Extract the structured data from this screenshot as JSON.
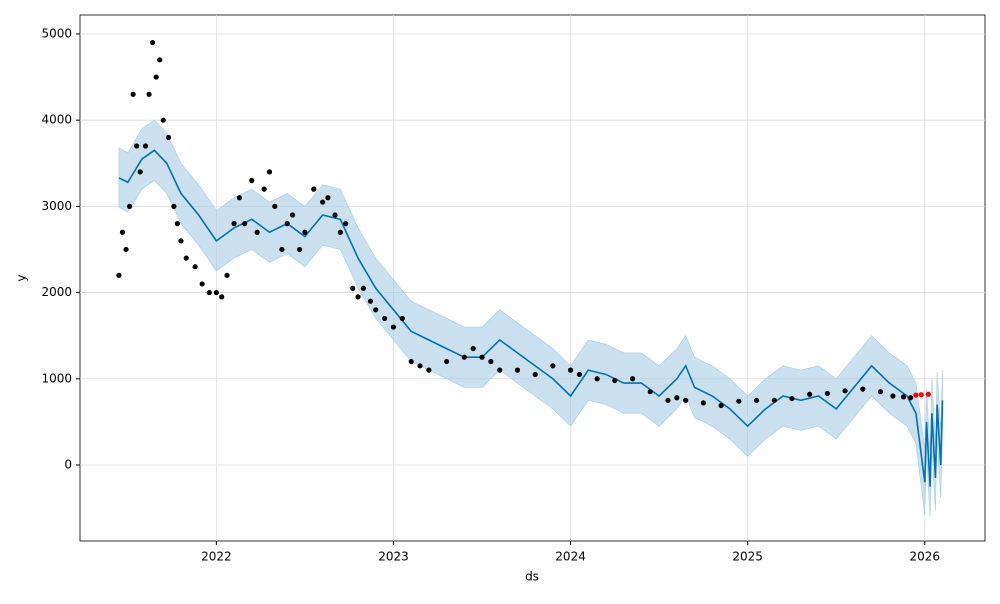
{
  "chart_data": {
    "type": "line",
    "xlabel": "ds",
    "ylabel": "y",
    "xlim": [
      2021.23,
      2026.34
    ],
    "xticks": [
      2022,
      2023,
      2024,
      2025,
      2026
    ],
    "ylim": [
      -882,
      5220
    ],
    "yticks": [
      0,
      1000,
      2000,
      3000,
      4000,
      5000
    ],
    "grid": true,
    "series": [
      {
        "type": "band",
        "color": "#a6cbe3",
        "x": [
          2021.45,
          2021.5,
          2021.58,
          2021.65,
          2021.72,
          2021.8,
          2021.9,
          2022.0,
          2022.1,
          2022.2,
          2022.3,
          2022.4,
          2022.5,
          2022.6,
          2022.7,
          2022.8,
          2022.9,
          2023.0,
          2023.1,
          2023.2,
          2023.3,
          2023.4,
          2023.5,
          2023.6,
          2023.7,
          2023.8,
          2023.9,
          2024.0,
          2024.1,
          2024.2,
          2024.3,
          2024.4,
          2024.5,
          2024.6,
          2024.65,
          2024.7,
          2024.8,
          2024.9,
          2025.0,
          2025.1,
          2025.2,
          2025.3,
          2025.4,
          2025.5,
          2025.6,
          2025.7,
          2025.8,
          2025.9,
          2025.95,
          2026.0,
          2026.01,
          2026.03,
          2026.04,
          2026.06,
          2026.07,
          2026.09,
          2026.1
        ],
        "lower": [
          2990,
          2930,
          3200,
          3300,
          3150,
          2800,
          2550,
          2250,
          2400,
          2500,
          2350,
          2450,
          2300,
          2550,
          2500,
          2050,
          1700,
          1450,
          1200,
          1100,
          1000,
          900,
          900,
          1100,
          950,
          800,
          650,
          450,
          750,
          700,
          600,
          600,
          450,
          650,
          800,
          550,
          450,
          300,
          100,
          300,
          450,
          400,
          450,
          300,
          550,
          800,
          600,
          450,
          250,
          -580,
          120,
          -600,
          220,
          -530,
          300,
          -380,
          350
        ],
        "upper": [
          3680,
          3620,
          3900,
          4000,
          3850,
          3500,
          3250,
          2950,
          3100,
          3200,
          3050,
          3150,
          3000,
          3250,
          3200,
          2750,
          2400,
          2150,
          1900,
          1800,
          1700,
          1600,
          1600,
          1800,
          1650,
          1500,
          1350,
          1150,
          1450,
          1400,
          1300,
          1300,
          1150,
          1350,
          1500,
          1250,
          1150,
          1000,
          800,
          1000,
          1150,
          1100,
          1150,
          1000,
          1250,
          1500,
          1300,
          1150,
          950,
          180,
          880,
          150,
          1000,
          250,
          1080,
          400,
          1100
        ]
      },
      {
        "type": "line",
        "color": "#0072b2",
        "x": [
          2021.45,
          2021.5,
          2021.58,
          2021.65,
          2021.72,
          2021.8,
          2021.9,
          2022.0,
          2022.1,
          2022.2,
          2022.3,
          2022.4,
          2022.5,
          2022.6,
          2022.7,
          2022.8,
          2022.9,
          2023.0,
          2023.1,
          2023.2,
          2023.3,
          2023.4,
          2023.5,
          2023.6,
          2023.7,
          2023.8,
          2023.9,
          2024.0,
          2024.1,
          2024.2,
          2024.3,
          2024.4,
          2024.5,
          2024.6,
          2024.65,
          2024.7,
          2024.8,
          2024.9,
          2025.0,
          2025.1,
          2025.2,
          2025.3,
          2025.4,
          2025.5,
          2025.6,
          2025.7,
          2025.8,
          2025.9,
          2025.95,
          2026.0,
          2026.01,
          2026.03,
          2026.04,
          2026.06,
          2026.07,
          2026.09,
          2026.1
        ],
        "values": [
          3330,
          3280,
          3550,
          3650,
          3500,
          3150,
          2900,
          2600,
          2750,
          2850,
          2700,
          2800,
          2650,
          2900,
          2850,
          2400,
          2050,
          1800,
          1550,
          1450,
          1350,
          1250,
          1250,
          1450,
          1300,
          1150,
          1000,
          800,
          1100,
          1050,
          950,
          950,
          800,
          1000,
          1150,
          900,
          800,
          650,
          450,
          650,
          800,
          750,
          800,
          650,
          900,
          1150,
          950,
          800,
          600,
          -200,
          500,
          -250,
          600,
          -150,
          700,
          0,
          750
        ]
      },
      {
        "type": "scatter",
        "color": "#000000",
        "x": [
          2021.45,
          2021.47,
          2021.49,
          2021.51,
          2021.53,
          2021.55,
          2021.57,
          2021.6,
          2021.62,
          2021.64,
          2021.66,
          2021.68,
          2021.7,
          2021.73,
          2021.76,
          2021.78,
          2021.8,
          2021.83,
          2021.88,
          2021.92,
          2021.96,
          2022.0,
          2022.03,
          2022.06,
          2022.1,
          2022.13,
          2022.16,
          2022.2,
          2022.23,
          2022.27,
          2022.3,
          2022.33,
          2022.37,
          2022.4,
          2022.43,
          2022.47,
          2022.5,
          2022.55,
          2022.6,
          2022.63,
          2022.67,
          2022.7,
          2022.73,
          2022.77,
          2022.8,
          2022.83,
          2022.87,
          2022.9,
          2022.95,
          2023.0,
          2023.05,
          2023.1,
          2023.15,
          2023.2,
          2023.3,
          2023.4,
          2023.45,
          2023.5,
          2023.55,
          2023.6,
          2023.7,
          2023.8,
          2023.9,
          2024.0,
          2024.05,
          2024.15,
          2024.25,
          2024.35,
          2024.45,
          2024.55,
          2024.6,
          2024.65,
          2024.75,
          2024.85,
          2024.95,
          2025.05,
          2025.15,
          2025.25,
          2025.35,
          2025.45,
          2025.55,
          2025.65,
          2025.75,
          2025.82,
          2025.88,
          2025.92
        ],
        "values": [
          2200,
          2700,
          2500,
          3000,
          4300,
          3700,
          3400,
          3700,
          4300,
          4900,
          4500,
          4700,
          4000,
          3800,
          3000,
          2800,
          2600,
          2400,
          2300,
          2100,
          2000,
          2000,
          1950,
          2200,
          2800,
          3100,
          2800,
          3300,
          2700,
          3200,
          3400,
          3000,
          2500,
          2800,
          2900,
          2500,
          2700,
          3200,
          3050,
          3100,
          2900,
          2700,
          2800,
          2050,
          1950,
          2050,
          1900,
          1800,
          1700,
          1600,
          1700,
          1200,
          1150,
          1100,
          1200,
          1250,
          1350,
          1250,
          1200,
          1100,
          1100,
          1050,
          1150,
          1100,
          1050,
          1000,
          980,
          1000,
          850,
          750,
          780,
          750,
          720,
          690,
          740,
          750,
          750,
          770,
          820,
          830,
          860,
          880,
          850,
          800,
          790,
          780
        ]
      },
      {
        "type": "scatter",
        "color": "#ff0000",
        "x": [
          2025.95,
          2025.98,
          2026.02
        ],
        "values": [
          810,
          815,
          820
        ]
      }
    ]
  }
}
